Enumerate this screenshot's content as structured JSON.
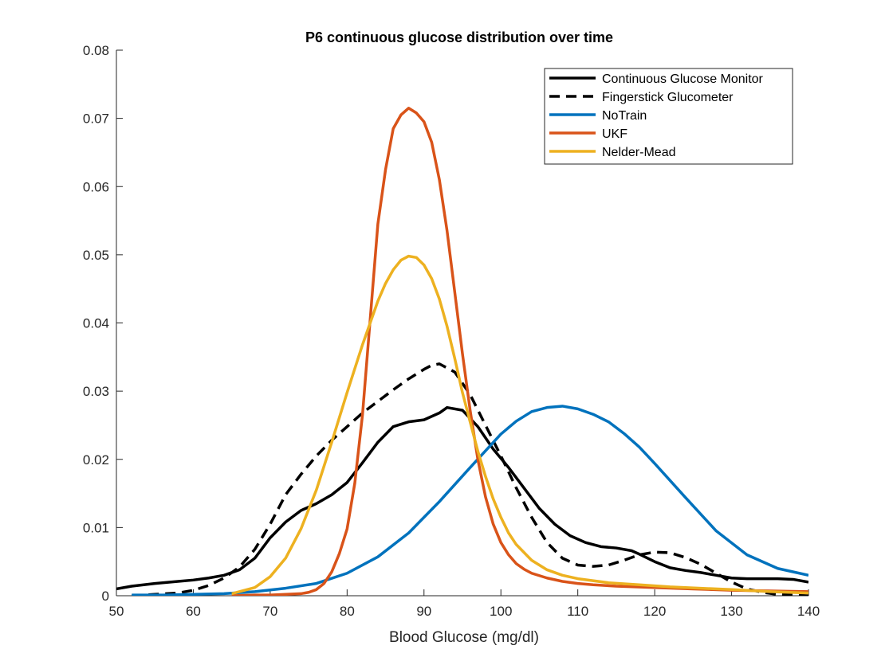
{
  "chart_data": {
    "type": "line",
    "title": "P6 continuous glucose distribution over time",
    "xlabel": "Blood Glucose (mg/dl)",
    "ylabel": "",
    "xlim": [
      50,
      140
    ],
    "ylim": [
      0,
      0.08
    ],
    "xticks": [
      50,
      60,
      70,
      80,
      90,
      100,
      110,
      120,
      130,
      140
    ],
    "xtick_labels": [
      "50",
      "60",
      "70",
      "80",
      "90",
      "100",
      "110",
      "120",
      "130",
      "140"
    ],
    "yticks": [
      0,
      0.01,
      0.02,
      0.03,
      0.04,
      0.05,
      0.06,
      0.07,
      0.08
    ],
    "ytick_labels": [
      "0",
      "0.01",
      "0.02",
      "0.03",
      "0.04",
      "0.05",
      "0.06",
      "0.07",
      "0.08"
    ],
    "grid": false,
    "legend_position": "top-right",
    "series": [
      {
        "name": "Continuous Glucose Monitor",
        "color": "#000000",
        "dash": "solid",
        "x": [
          50,
          52,
          55,
          58,
          60,
          62,
          64,
          66,
          68,
          70,
          72,
          74,
          76,
          78,
          80,
          82,
          84,
          86,
          88,
          90,
          92,
          93,
          95,
          97,
          99,
          101,
          103,
          105,
          107,
          109,
          111,
          113,
          115,
          117,
          118,
          120,
          122,
          124,
          126,
          128,
          130,
          132,
          134,
          136,
          138,
          140
        ],
        "y": [
          0.001,
          0.0014,
          0.0018,
          0.0021,
          0.0023,
          0.0026,
          0.003,
          0.0038,
          0.0055,
          0.0085,
          0.0108,
          0.0125,
          0.0135,
          0.0148,
          0.0166,
          0.0195,
          0.0225,
          0.0248,
          0.0255,
          0.0258,
          0.0268,
          0.0276,
          0.0272,
          0.0248,
          0.0215,
          0.0188,
          0.0158,
          0.0128,
          0.0105,
          0.0088,
          0.0078,
          0.0072,
          0.007,
          0.0066,
          0.0061,
          0.005,
          0.0041,
          0.0037,
          0.0034,
          0.003,
          0.0026,
          0.0025,
          0.0025,
          0.0025,
          0.0024,
          0.002
        ]
      },
      {
        "name": "Fingerstick Glucometer",
        "color": "#000000",
        "dash": "dashed",
        "x": [
          52,
          55,
          58,
          60,
          62,
          64,
          66,
          68,
          70,
          72,
          74,
          76,
          78,
          80,
          82,
          84,
          86,
          88,
          90,
          91,
          92,
          94,
          96,
          98,
          100,
          102,
          104,
          106,
          108,
          110,
          112,
          114,
          116,
          118,
          120,
          122,
          124,
          126,
          128,
          130,
          132,
          134,
          136,
          138,
          140
        ],
        "y": [
          0.0,
          0.0002,
          0.0004,
          0.0008,
          0.0015,
          0.0026,
          0.0042,
          0.0068,
          0.0105,
          0.0148,
          0.0178,
          0.0205,
          0.0228,
          0.0248,
          0.0268,
          0.0285,
          0.0302,
          0.0318,
          0.0332,
          0.0338,
          0.034,
          0.0328,
          0.0295,
          0.025,
          0.0205,
          0.0158,
          0.0115,
          0.0078,
          0.0055,
          0.0045,
          0.0043,
          0.0045,
          0.0052,
          0.006,
          0.0064,
          0.0063,
          0.0056,
          0.0046,
          0.0033,
          0.002,
          0.001,
          0.0005,
          0.0002,
          0.0001,
          0.0
        ]
      },
      {
        "name": "NoTrain",
        "color": "#0072BD",
        "dash": "solid",
        "x": [
          52,
          56,
          60,
          64,
          68,
          72,
          76,
          80,
          84,
          88,
          92,
          96,
          100,
          102,
          104,
          106,
          108,
          110,
          112,
          114,
          116,
          118,
          120,
          124,
          128,
          132,
          136,
          140
        ],
        "y": [
          0.0001,
          0.0001,
          0.0002,
          0.0003,
          0.0006,
          0.0011,
          0.0018,
          0.0033,
          0.0057,
          0.0092,
          0.0138,
          0.0188,
          0.0237,
          0.0256,
          0.027,
          0.0276,
          0.0278,
          0.0274,
          0.0266,
          0.0255,
          0.0238,
          0.0218,
          0.0194,
          0.0144,
          0.0095,
          0.006,
          0.004,
          0.003
        ]
      },
      {
        "name": "UKF",
        "color": "#D95319",
        "dash": "solid",
        "x": [
          65,
          68,
          70,
          72,
          74,
          75,
          76,
          77,
          78,
          79,
          80,
          81,
          82,
          83,
          84,
          85,
          86,
          87,
          88,
          89,
          90,
          91,
          92,
          93,
          94,
          95,
          96,
          97,
          98,
          99,
          100,
          101,
          102,
          103,
          104,
          106,
          108,
          110,
          112,
          115,
          120,
          125,
          130,
          135,
          140
        ],
        "y": [
          0.0,
          0.0001,
          0.0001,
          0.0002,
          0.0003,
          0.0005,
          0.0009,
          0.0018,
          0.0035,
          0.0062,
          0.0098,
          0.0165,
          0.0265,
          0.0405,
          0.0545,
          0.0625,
          0.0685,
          0.0705,
          0.0715,
          0.0708,
          0.0695,
          0.0665,
          0.061,
          0.0535,
          0.0445,
          0.0355,
          0.0272,
          0.02,
          0.0145,
          0.0105,
          0.0078,
          0.006,
          0.0047,
          0.0039,
          0.0033,
          0.0026,
          0.0021,
          0.0018,
          0.0016,
          0.0014,
          0.0012,
          0.001,
          0.0008,
          0.0007,
          0.0006
        ]
      },
      {
        "name": "Nelder-Mead",
        "color": "#EDB120",
        "dash": "solid",
        "x": [
          65,
          68,
          70,
          72,
          74,
          76,
          78,
          80,
          82,
          84,
          85,
          86,
          87,
          88,
          89,
          90,
          91,
          92,
          93,
          94,
          95,
          96,
          97,
          98,
          99,
          100,
          101,
          102,
          104,
          106,
          108,
          110,
          114,
          118,
          122,
          126,
          130,
          135,
          140
        ],
        "y": [
          0.0003,
          0.0012,
          0.0028,
          0.0055,
          0.0098,
          0.0155,
          0.0225,
          0.0298,
          0.0368,
          0.0432,
          0.0458,
          0.0478,
          0.0492,
          0.0498,
          0.0496,
          0.0485,
          0.0465,
          0.0435,
          0.0395,
          0.0348,
          0.0298,
          0.0255,
          0.0212,
          0.0175,
          0.0142,
          0.0115,
          0.0092,
          0.0075,
          0.0052,
          0.0038,
          0.003,
          0.0025,
          0.0019,
          0.0016,
          0.0013,
          0.0011,
          0.0009,
          0.0006,
          0.0004
        ]
      }
    ]
  }
}
